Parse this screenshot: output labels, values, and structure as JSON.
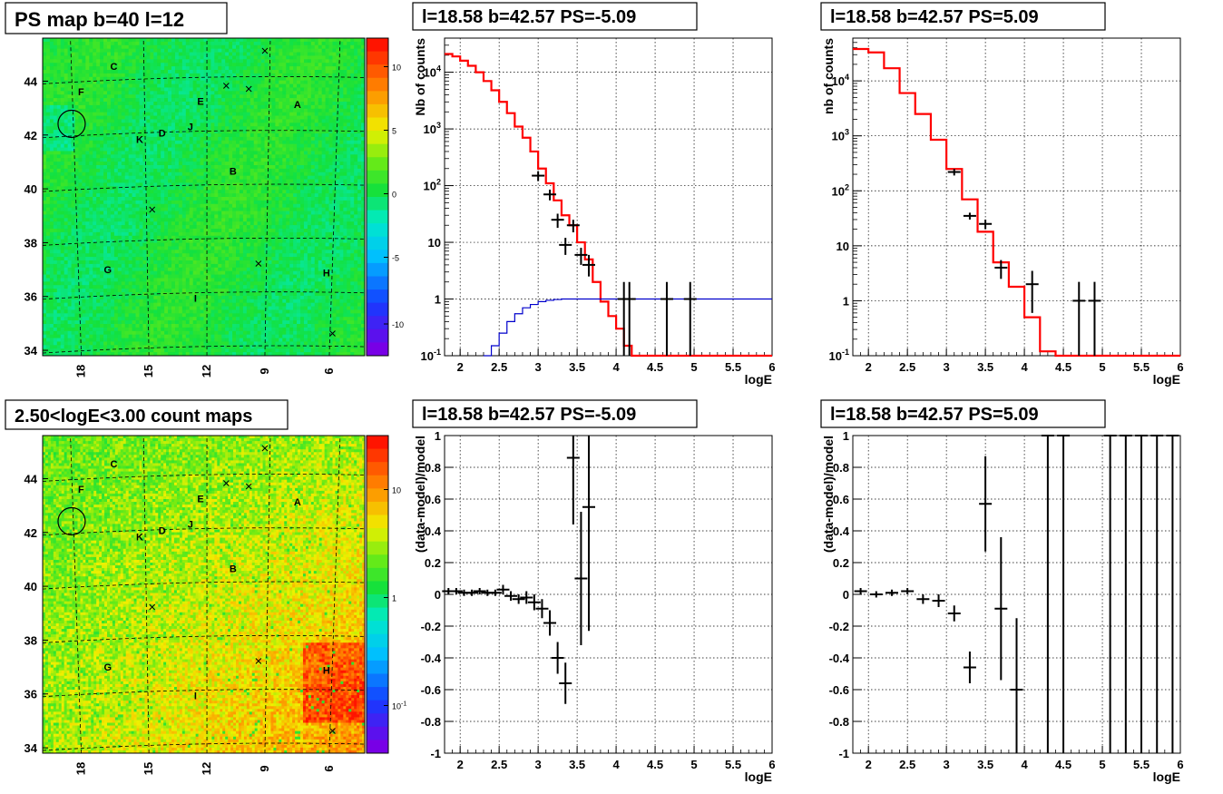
{
  "colors": {
    "model_line": "#ff0000",
    "blue_line": "#0000cc",
    "data_points": "#000000",
    "grid": "#000000",
    "background": "#ffffff"
  },
  "chart_data": [
    {
      "id": "ps_map",
      "type": "heatmap",
      "title": "PS map b=40 l=12",
      "x_ticks": [
        "18",
        "15",
        "12",
        "9",
        "6"
      ],
      "y_ticks": [
        "34",
        "36",
        "38",
        "40",
        "42",
        "44"
      ],
      "ylim": [
        33.8,
        45.6
      ],
      "colorbar_ticks": [
        "10",
        "5",
        "0",
        "-5",
        "-10"
      ],
      "colorbar_range": [
        -12,
        12
      ],
      "source_labels": [
        "A",
        "B",
        "C",
        "D",
        "E",
        "F",
        "G",
        "H",
        "I",
        "J",
        "K"
      ],
      "grid": true
    },
    {
      "id": "spectrum_neg",
      "type": "line",
      "title": "l=18.58 b=42.57 PS=-5.09",
      "xlabel": "logE",
      "ylabel": "Nb of counts",
      "xlim": [
        1.8,
        6
      ],
      "ylim": [
        0.1,
        40000
      ],
      "yscale": "log",
      "x_ticks": [
        "2",
        "2.5",
        "3",
        "3.5",
        "4",
        "4.5",
        "5",
        "5.5",
        "6"
      ],
      "y_ticks": [
        "10^-1",
        "1",
        "10",
        "10^2",
        "10^3",
        "10^4"
      ],
      "grid": true,
      "series": [
        {
          "x": [
            1.8,
            1.9,
            2.0,
            2.1,
            2.2,
            2.3,
            2.4,
            2.5,
            2.6,
            2.7,
            2.8,
            2.9,
            3.0,
            3.1,
            3.2,
            3.3,
            3.4,
            3.5,
            3.6,
            3.7,
            3.8,
            3.9,
            4.0,
            4.1,
            4.2,
            4.3,
            6.0
          ],
          "values": [
            21000,
            19000,
            16000,
            13000,
            10000,
            7000,
            4800,
            3000,
            1900,
            1100,
            700,
            400,
            200,
            110,
            55,
            30,
            20,
            10,
            5,
            2,
            0.9,
            0.5,
            0.3,
            0.15,
            0.1,
            0.1,
            0.1
          ]
        },
        {
          "x": [
            2.3,
            2.4,
            2.5,
            2.6,
            2.7,
            2.8,
            2.9,
            3.0,
            3.1,
            3.2,
            3.3,
            3.4,
            3.5,
            6.0
          ],
          "values": [
            0.1,
            0.15,
            0.25,
            0.4,
            0.55,
            0.7,
            0.8,
            0.9,
            0.95,
            0.98,
            1.0,
            1.0,
            1.0,
            1.0
          ]
        },
        {
          "x": [
            3.0,
            3.15,
            3.25,
            3.35,
            3.45,
            3.55,
            3.65,
            4.1,
            4.17,
            4.65,
            4.95
          ],
          "values": [
            150,
            70,
            25,
            9,
            20,
            6,
            4,
            1,
            1,
            1,
            1
          ],
          "err_low": [
            120,
            55,
            18,
            6,
            15,
            4,
            2.5,
            0.1,
            0.1,
            0.1,
            0.1
          ],
          "err_high": [
            180,
            85,
            32,
            12,
            25,
            8,
            6,
            2,
            2,
            2,
            2
          ]
        }
      ]
    },
    {
      "id": "spectrum_pos",
      "type": "line",
      "title": "l=18.58 b=42.57 PS=5.09",
      "xlabel": "logE",
      "ylabel": "nb of counts",
      "xlim": [
        1.8,
        6
      ],
      "ylim": [
        0.1,
        60000
      ],
      "yscale": "log",
      "x_ticks": [
        "2",
        "2.5",
        "3",
        "3.5",
        "4",
        "4.5",
        "5",
        "5.5",
        "6"
      ],
      "y_ticks": [
        "10^-1",
        "1",
        "10",
        "10^2",
        "10^3",
        "10^4"
      ],
      "grid": true,
      "series": [
        {
          "x": [
            1.8,
            2.0,
            2.2,
            2.4,
            2.6,
            2.8,
            3.0,
            3.2,
            3.4,
            3.6,
            3.8,
            4.0,
            4.2,
            4.4,
            6.0
          ],
          "values": [
            38000,
            33000,
            17000,
            6000,
            2500,
            850,
            250,
            70,
            18,
            5,
            1.8,
            0.5,
            0.12,
            0.1,
            0.1
          ]
        },
        {
          "x": [
            3.1,
            3.3,
            3.5,
            3.7,
            4.1,
            4.7,
            4.9
          ],
          "values": [
            220,
            35,
            25,
            4,
            2,
            1,
            1
          ],
          "err_low": [
            190,
            30,
            20,
            2.5,
            0.6,
            0.1,
            0.1
          ],
          "err_high": [
            250,
            40,
            30,
            5.5,
            3.5,
            2.2,
            2.2
          ]
        }
      ]
    },
    {
      "id": "count_map",
      "type": "heatmap",
      "title": "2.50<logE<3.00 count maps",
      "x_ticks": [
        "18",
        "15",
        "12",
        "9",
        "6"
      ],
      "y_ticks": [
        "34",
        "36",
        "38",
        "40",
        "42",
        "44"
      ],
      "ylim": [
        33.8,
        45.6
      ],
      "colorbar_ticks": [
        "10",
        "1",
        "10^-1"
      ],
      "colorbar_scale": "log",
      "source_labels": [
        "A",
        "B",
        "C",
        "D",
        "E",
        "F",
        "G",
        "H",
        "I",
        "J",
        "K"
      ],
      "grid": true
    },
    {
      "id": "residual_neg",
      "type": "scatter",
      "title": "l=18.58 b=42.57 PS=-5.09",
      "xlabel": "logE",
      "ylabel": "(data-model)/model",
      "xlim": [
        1.8,
        6
      ],
      "ylim": [
        -1,
        1
      ],
      "x_ticks": [
        "2",
        "2.5",
        "3",
        "3.5",
        "4",
        "4.5",
        "5",
        "5.5",
        "6"
      ],
      "y_ticks": [
        "-1",
        "-0.8",
        "-0.6",
        "-0.4",
        "-0.2",
        "0",
        "0.2",
        "0.4",
        "0.6",
        "0.8",
        "1"
      ],
      "grid": true,
      "series": [
        {
          "x": [
            1.85,
            1.95,
            2.05,
            2.15,
            2.25,
            2.35,
            2.45,
            2.55,
            2.65,
            2.75,
            2.85,
            2.95,
            3.05,
            3.15,
            3.25,
            3.35,
            3.45,
            3.55,
            3.65
          ],
          "values": [
            0.02,
            0.02,
            0.01,
            0.01,
            0.02,
            0.01,
            0.01,
            0.03,
            -0.01,
            -0.03,
            -0.02,
            -0.05,
            -0.09,
            -0.18,
            -0.4,
            -0.56,
            0.86,
            0.1,
            0.55
          ],
          "err": [
            0.02,
            0.02,
            0.02,
            0.02,
            0.02,
            0.02,
            0.02,
            0.03,
            0.03,
            0.03,
            0.04,
            0.05,
            0.06,
            0.08,
            0.1,
            0.13,
            0.42,
            0.42,
            0.78
          ]
        }
      ]
    },
    {
      "id": "residual_pos",
      "type": "scatter",
      "title": "l=18.58 b=42.57 PS=5.09",
      "xlabel": "logE",
      "ylabel": "(data-model)/model",
      "xlim": [
        1.8,
        6
      ],
      "ylim": [
        -1,
        1
      ],
      "x_ticks": [
        "2",
        "2.5",
        "3",
        "3.5",
        "4",
        "4.5",
        "5",
        "5.5",
        "6"
      ],
      "y_ticks": [
        "-1",
        "-0.8",
        "-0.6",
        "-0.4",
        "-0.2",
        "0",
        "0.2",
        "0.4",
        "0.6",
        "0.8",
        "1"
      ],
      "grid": true,
      "series": [
        {
          "x": [
            1.9,
            2.1,
            2.3,
            2.5,
            2.7,
            2.9,
            3.1,
            3.3,
            3.5,
            3.7,
            3.9,
            4.3,
            4.5,
            5.1,
            5.3,
            5.5,
            5.7,
            5.9
          ],
          "values": [
            0.02,
            0.0,
            0.01,
            0.02,
            -0.03,
            -0.04,
            -0.12,
            -0.46,
            0.57,
            -0.09,
            -0.6,
            1.0,
            1.0,
            1.0,
            1.0,
            1.0,
            1.0,
            1.0
          ],
          "err": [
            0.02,
            0.02,
            0.02,
            0.02,
            0.03,
            0.04,
            0.05,
            0.1,
            0.3,
            0.45,
            0.45,
            2.0,
            2.0,
            2.0,
            2.0,
            2.0,
            2.0,
            2.0
          ]
        }
      ]
    }
  ]
}
